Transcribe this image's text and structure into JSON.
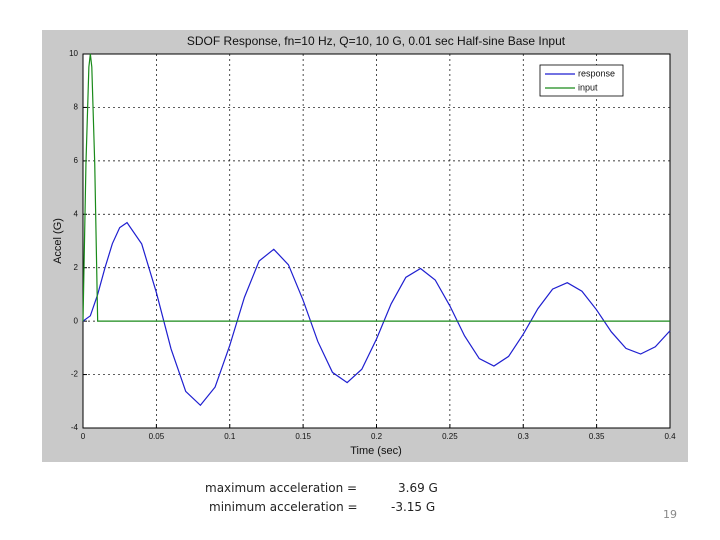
{
  "chart_data": {
    "type": "line",
    "title": "SDOF Response, fn=10 Hz, Q=10,   10 G, 0.01 sec Half-sine Base Input",
    "xlabel": "Time (sec)",
    "ylabel": "Accel (G)",
    "xlim": [
      0,
      0.4
    ],
    "xticks": [
      0,
      0.05,
      0.1,
      0.15,
      0.2,
      0.25,
      0.3,
      0.35,
      0.4
    ],
    "ylim": [
      -4,
      10
    ],
    "yticks": [
      -4,
      -2,
      0,
      2,
      4,
      6,
      8,
      10
    ],
    "grid": true,
    "legend": "upper right",
    "series": [
      {
        "name": "response",
        "color": "#1f1fd0",
        "x": [
          0,
          0.005,
          0.01,
          0.015,
          0.02,
          0.025,
          0.03,
          0.04,
          0.05,
          0.06,
          0.07,
          0.08,
          0.09,
          0.1,
          0.11,
          0.12,
          0.13,
          0.14,
          0.15,
          0.16,
          0.17,
          0.18,
          0.19,
          0.2,
          0.21,
          0.22,
          0.23,
          0.24,
          0.25,
          0.26,
          0.27,
          0.28,
          0.29,
          0.3,
          0.31,
          0.32,
          0.33,
          0.34,
          0.35,
          0.36,
          0.37,
          0.38,
          0.39,
          0.4
        ],
        "values": [
          0,
          0.2,
          1.0,
          2.0,
          2.9,
          3.5,
          3.69,
          2.89,
          1.07,
          -1.04,
          -2.63,
          -3.15,
          -2.47,
          -0.91,
          0.89,
          2.25,
          2.69,
          2.11,
          0.78,
          -0.76,
          -1.92,
          -2.3,
          -1.8,
          -0.67,
          0.65,
          1.64,
          1.97,
          1.54,
          0.57,
          -0.55,
          -1.4,
          -1.68,
          -1.32,
          -0.49,
          0.47,
          1.2,
          1.44,
          1.12,
          0.42,
          -0.4,
          -1.02,
          -1.23,
          -0.96,
          -0.36
        ]
      },
      {
        "name": "input",
        "color": "#1a8a1a",
        "x": [
          0,
          0.002,
          0.004,
          0.005,
          0.006,
          0.008,
          0.01,
          0.4
        ],
        "values": [
          0,
          5.88,
          9.51,
          10,
          9.51,
          5.88,
          0,
          0
        ]
      }
    ]
  },
  "stats": [
    {
      "label": "maximum acceleration =",
      "value": "3.69 G"
    },
    {
      "label": "minimum acceleration =",
      "value": "-3.15 G"
    }
  ],
  "slide_number": "19"
}
